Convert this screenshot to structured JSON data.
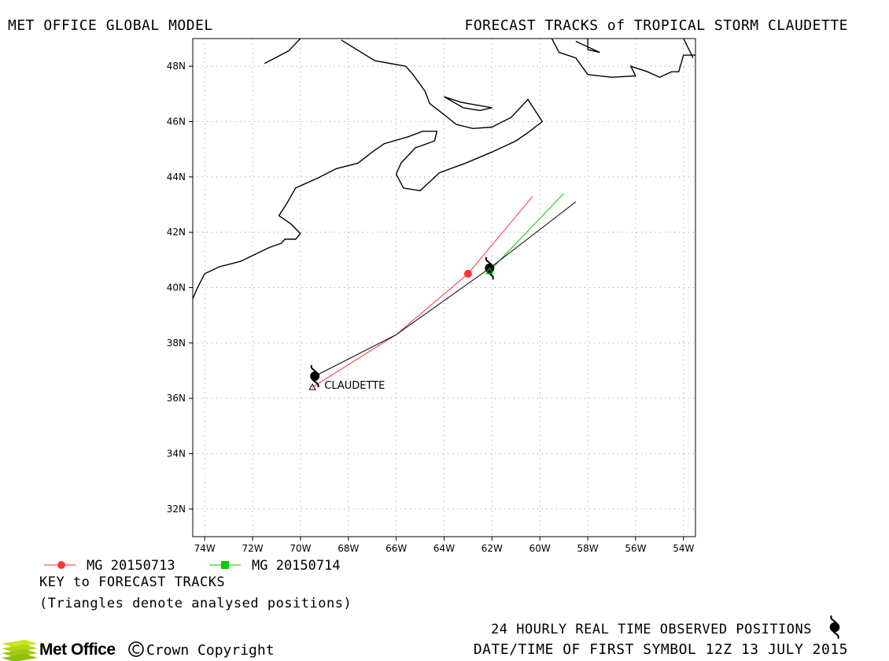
{
  "header": {
    "left_title": "MET OFFICE GLOBAL MODEL",
    "right_title": "FORECAST TRACKS of TROPICAL STORM CLAUDETTE"
  },
  "map": {
    "lon_range": [
      -74.5,
      -53.5
    ],
    "lat_range": [
      31,
      49
    ],
    "lon_ticks": [
      -74,
      -72,
      -70,
      -68,
      -66,
      -64,
      -62,
      -60,
      -58,
      -56,
      -54
    ],
    "lat_ticks": [
      32,
      34,
      36,
      38,
      40,
      42,
      44,
      46,
      48
    ],
    "lon_tick_labels": [
      "74W",
      "72W",
      "70W",
      "68W",
      "66W",
      "64W",
      "62W",
      "60W",
      "58W",
      "56W",
      "54W"
    ],
    "lat_tick_labels": [
      "32N",
      "34N",
      "36N",
      "38N",
      "40N",
      "42N",
      "44N",
      "46N",
      "48N"
    ],
    "grid": "dotted",
    "storm_label": "CLAUDETTE",
    "storm_label_at": {
      "lon": -69.2,
      "lat": 36.4
    }
  },
  "chart_data": {
    "type": "line",
    "series": [
      {
        "name": "MG 20150713",
        "color": "#ff3333",
        "marker": "circle",
        "points": [
          [
            -69.5,
            36.4
          ],
          [
            -66.0,
            38.3
          ],
          [
            -63.0,
            40.5
          ],
          [
            -60.3,
            43.3
          ]
        ],
        "marker_points": [
          [
            -63.0,
            40.5
          ]
        ]
      },
      {
        "name": "MG 20150714",
        "color": "#00cc00",
        "marker": "square",
        "points": [
          [
            -62.1,
            40.6
          ],
          [
            -59.0,
            43.4
          ]
        ],
        "marker_points": [
          [
            -62.1,
            40.6
          ]
        ]
      },
      {
        "name": "observed",
        "color": "#000000",
        "marker": "storm",
        "points": [
          [
            -69.4,
            36.8
          ],
          [
            -66.0,
            38.3
          ],
          [
            -62.1,
            40.7
          ],
          [
            -58.5,
            43.1
          ]
        ],
        "marker_points": [
          [
            -69.4,
            36.8
          ],
          [
            -62.1,
            40.7
          ]
        ]
      }
    ]
  },
  "coastlines": [
    [
      [
        -74.5,
        39.6
      ],
      [
        -74.3,
        40.0
      ],
      [
        -74.0,
        40.5
      ],
      [
        -73.4,
        40.75
      ],
      [
        -72.5,
        40.95
      ],
      [
        -71.9,
        41.2
      ],
      [
        -71.3,
        41.45
      ],
      [
        -70.8,
        41.6
      ],
      [
        -70.65,
        41.75
      ],
      [
        -70.2,
        41.75
      ],
      [
        -70.0,
        41.95
      ],
      [
        -70.4,
        42.3
      ],
      [
        -70.9,
        42.6
      ],
      [
        -70.6,
        43.0
      ],
      [
        -70.2,
        43.6
      ],
      [
        -69.3,
        43.95
      ],
      [
        -68.5,
        44.3
      ],
      [
        -67.6,
        44.5
      ],
      [
        -67.0,
        44.9
      ],
      [
        -66.5,
        45.2
      ],
      [
        -65.5,
        45.45
      ],
      [
        -64.9,
        45.65
      ],
      [
        -64.3,
        45.65
      ],
      [
        -64.4,
        45.3
      ],
      [
        -65.2,
        45.05
      ],
      [
        -65.8,
        44.5
      ],
      [
        -66.0,
        44.1
      ],
      [
        -65.7,
        43.6
      ],
      [
        -65.0,
        43.5
      ],
      [
        -64.2,
        44.15
      ],
      [
        -63.1,
        44.5
      ],
      [
        -62.0,
        44.9
      ],
      [
        -61.0,
        45.3
      ],
      [
        -60.5,
        45.6
      ],
      [
        -59.9,
        46.0
      ],
      [
        -60.5,
        46.8
      ],
      [
        -61.2,
        46.15
      ],
      [
        -62.0,
        45.8
      ],
      [
        -62.8,
        45.75
      ],
      [
        -63.5,
        45.9
      ],
      [
        -64.0,
        46.25
      ],
      [
        -64.6,
        46.65
      ],
      [
        -64.8,
        47.1
      ],
      [
        -65.3,
        47.7
      ],
      [
        -65.6,
        48.0
      ],
      [
        -66.9,
        48.2
      ],
      [
        -68.3,
        48.95
      ]
    ],
    [
      [
        -63.2,
        46.5
      ],
      [
        -62.5,
        46.4
      ],
      [
        -62.0,
        46.5
      ],
      [
        -63.3,
        46.7
      ],
      [
        -64.0,
        46.9
      ],
      [
        -63.2,
        46.5
      ]
    ],
    [
      [
        -71.5,
        48.1
      ],
      [
        -70.5,
        48.55
      ],
      [
        -70.0,
        49.0
      ]
    ],
    [
      [
        -59.5,
        49.0
      ],
      [
        -59.2,
        48.5
      ],
      [
        -58.5,
        48.3
      ],
      [
        -58.0,
        47.7
      ],
      [
        -57.0,
        47.6
      ],
      [
        -56.0,
        47.65
      ],
      [
        -56.2,
        48.0
      ],
      [
        -55.5,
        47.8
      ],
      [
        -55.0,
        47.6
      ],
      [
        -54.5,
        47.8
      ],
      [
        -54.2,
        47.8
      ],
      [
        -54.0,
        48.4
      ],
      [
        -53.5,
        48.4
      ]
    ],
    [
      [
        -58.0,
        49.0
      ],
      [
        -58.0,
        48.6
      ],
      [
        -57.5,
        48.5
      ],
      [
        -58.5,
        48.9
      ]
    ],
    [
      [
        -54.0,
        49.0
      ],
      [
        -53.6,
        48.3
      ]
    ]
  ],
  "legend": {
    "series1_label": "MG 20150713",
    "series2_label": "MG 20150714",
    "key_title": "KEY to FORECAST TRACKS",
    "key_note": "(Triangles denote analysed positions)"
  },
  "footer": {
    "logo_text": "Met Office",
    "copyright": "Crown Copyright",
    "observed_note": "24 HOURLY REAL TIME OBSERVED POSITIONS",
    "datetime_note": "DATE/TIME OF FIRST SYMBOL 12Z 13 JULY 2015",
    "observed_icon": "tropical-storm-symbol"
  }
}
